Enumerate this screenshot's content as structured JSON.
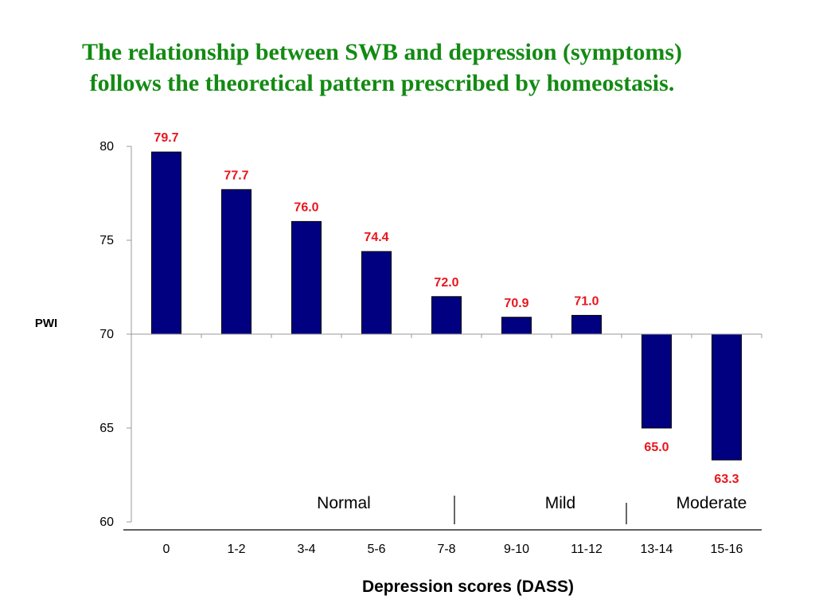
{
  "header": {
    "title_line1": "The relationship between SWB and depression (symptoms)",
    "title_line2": "follows the theoretical pattern prescribed by homeostasis."
  },
  "chart_data": {
    "type": "bar",
    "categories": [
      "0",
      "1-2",
      "3-4",
      "5-6",
      "7-8",
      "9-10",
      "11-12",
      "13-14",
      "15-16"
    ],
    "values": [
      79.7,
      77.7,
      76.0,
      74.4,
      72.0,
      70.9,
      71.0,
      65.0,
      63.3
    ],
    "data_labels": [
      "79.7",
      "77.7",
      "76.0",
      "74.4",
      "72.0",
      "70.9",
      "71.0",
      "65.0",
      "63.3"
    ],
    "baseline": 70,
    "ylim": [
      60,
      80
    ],
    "yticks": [
      60,
      65,
      70,
      75,
      80
    ],
    "xlabel": "Depression scores (DASS)",
    "ylabel": "PWI",
    "regions": [
      "Normal",
      "Mild",
      "Moderate"
    ],
    "bar_color": "#000080",
    "data_label_color": "#e8161c",
    "grid": false
  }
}
